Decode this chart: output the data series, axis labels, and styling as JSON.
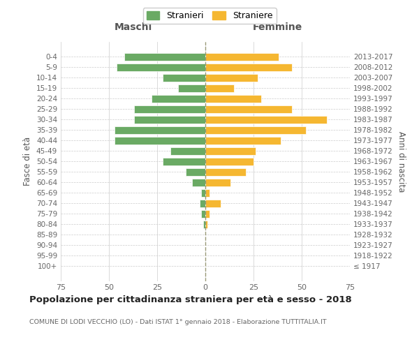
{
  "age_groups": [
    "100+",
    "95-99",
    "90-94",
    "85-89",
    "80-84",
    "75-79",
    "70-74",
    "65-69",
    "60-64",
    "55-59",
    "50-54",
    "45-49",
    "40-44",
    "35-39",
    "30-34",
    "25-29",
    "20-24",
    "15-19",
    "10-14",
    "5-9",
    "0-4"
  ],
  "birth_years": [
    "≤ 1917",
    "1918-1922",
    "1923-1927",
    "1928-1932",
    "1933-1937",
    "1938-1942",
    "1943-1947",
    "1948-1952",
    "1953-1957",
    "1958-1962",
    "1963-1967",
    "1968-1972",
    "1973-1977",
    "1978-1982",
    "1983-1987",
    "1988-1992",
    "1993-1997",
    "1998-2002",
    "2003-2007",
    "2008-2012",
    "2013-2017"
  ],
  "maschi": [
    0,
    0,
    0,
    0,
    1,
    2,
    3,
    2,
    7,
    10,
    22,
    18,
    47,
    47,
    37,
    37,
    28,
    14,
    22,
    46,
    42
  ],
  "femmine": [
    0,
    0,
    0,
    0,
    1,
    2,
    8,
    2,
    13,
    21,
    25,
    26,
    39,
    52,
    63,
    45,
    29,
    15,
    27,
    45,
    38
  ],
  "male_color": "#6aaa64",
  "female_color": "#f5b731",
  "title": "Popolazione per cittadinanza straniera per età e sesso - 2018",
  "subtitle": "COMUNE DI LODI VECCHIO (LO) - Dati ISTAT 1° gennaio 2018 - Elaborazione TUTTITALIA.IT",
  "ylabel_left": "Fasce di età",
  "ylabel_right": "Anni di nascita",
  "xlabel_left": "Maschi",
  "xlabel_right": "Femmine",
  "legend_male": "Stranieri",
  "legend_female": "Straniere",
  "xlim": 75,
  "background_color": "#ffffff",
  "grid_color": "#cccccc",
  "bar_edge_color": "#ffffff"
}
